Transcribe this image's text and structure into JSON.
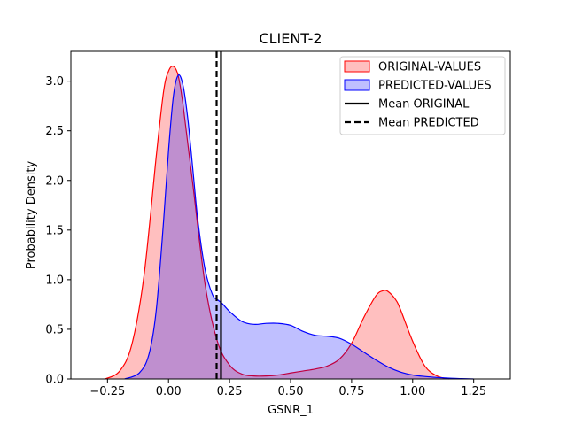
{
  "chart_data": {
    "type": "area",
    "title": "CLIENT-2",
    "xlabel": "GSNR_1",
    "ylabel": "Probability Density",
    "xlim": [
      -0.4,
      1.4
    ],
    "ylim": [
      0,
      3.3
    ],
    "xticks": [
      -0.25,
      0.0,
      0.25,
      0.5,
      0.75,
      1.0,
      1.25
    ],
    "xtick_labels": [
      "−0.25",
      "0.00",
      "0.25",
      "0.50",
      "0.75",
      "1.00",
      "1.25"
    ],
    "yticks": [
      0.0,
      0.5,
      1.0,
      1.5,
      2.0,
      2.5,
      3.0
    ],
    "ytick_labels": [
      "0.0",
      "0.5",
      "1.0",
      "1.5",
      "2.0",
      "2.5",
      "3.0"
    ],
    "grid": false,
    "legend_position": "top-right",
    "series": [
      {
        "name": "ORIGINAL-VALUES",
        "color": "#ff0000",
        "fill": "#ff0000",
        "fill_opacity": 0.25,
        "x": [
          -0.26,
          -0.2,
          -0.15,
          -0.1,
          -0.05,
          -0.02,
          0.0,
          0.02,
          0.04,
          0.06,
          0.1,
          0.15,
          0.2,
          0.25,
          0.3,
          0.35,
          0.4,
          0.45,
          0.5,
          0.55,
          0.6,
          0.65,
          0.7,
          0.75,
          0.8,
          0.85,
          0.88,
          0.9,
          0.93,
          0.95,
          1.0,
          1.05,
          1.1,
          1.15
        ],
        "y": [
          0.0,
          0.08,
          0.35,
          1.05,
          2.25,
          2.9,
          3.1,
          3.15,
          3.05,
          2.75,
          1.95,
          0.95,
          0.38,
          0.14,
          0.05,
          0.03,
          0.03,
          0.04,
          0.06,
          0.08,
          0.1,
          0.13,
          0.2,
          0.36,
          0.62,
          0.84,
          0.89,
          0.88,
          0.8,
          0.7,
          0.38,
          0.13,
          0.03,
          0.0
        ]
      },
      {
        "name": "PREDICTED-VALUES",
        "color": "#0000ff",
        "fill": "#0000ff",
        "fill_opacity": 0.25,
        "x": [
          -0.18,
          -0.12,
          -0.08,
          -0.05,
          -0.02,
          0.0,
          0.02,
          0.04,
          0.06,
          0.08,
          0.1,
          0.12,
          0.15,
          0.18,
          0.2,
          0.22,
          0.25,
          0.3,
          0.35,
          0.4,
          0.45,
          0.5,
          0.55,
          0.6,
          0.65,
          0.7,
          0.75,
          0.8,
          0.85,
          0.9,
          0.95,
          1.0,
          1.05,
          1.1,
          1.15,
          1.2,
          1.25
        ],
        "y": [
          0.0,
          0.06,
          0.25,
          0.7,
          1.6,
          2.3,
          2.85,
          3.06,
          2.95,
          2.6,
          2.1,
          1.6,
          1.1,
          0.85,
          0.8,
          0.76,
          0.68,
          0.58,
          0.55,
          0.56,
          0.56,
          0.54,
          0.48,
          0.44,
          0.43,
          0.41,
          0.35,
          0.27,
          0.19,
          0.12,
          0.07,
          0.04,
          0.025,
          0.015,
          0.008,
          0.004,
          0.0
        ]
      }
    ],
    "reference_lines": [
      {
        "name": "Mean ORIGINAL",
        "x": 0.215,
        "style": "solid",
        "color": "#000000"
      },
      {
        "name": "Mean PREDICTED",
        "x": 0.197,
        "style": "dashed",
        "color": "#000000"
      }
    ],
    "legend": [
      {
        "label": "ORIGINAL-VALUES",
        "kind": "patch",
        "fill": "#ff0000",
        "stroke": "#ff0000"
      },
      {
        "label": "PREDICTED-VALUES",
        "kind": "patch",
        "fill": "#0000ff",
        "stroke": "#0000ff"
      },
      {
        "label": "Mean ORIGINAL",
        "kind": "line",
        "style": "solid",
        "stroke": "#000000"
      },
      {
        "label": "Mean PREDICTED",
        "kind": "line",
        "style": "dashed",
        "stroke": "#000000"
      }
    ]
  }
}
